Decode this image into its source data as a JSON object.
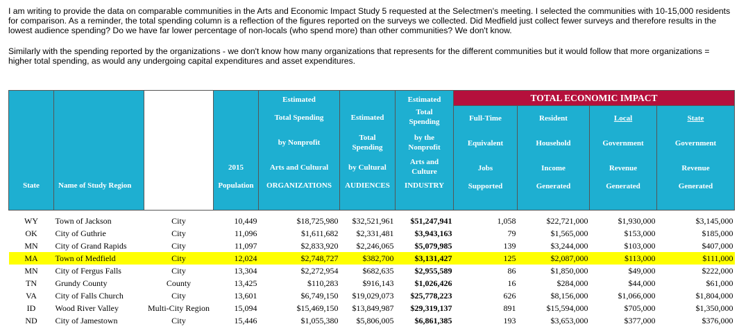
{
  "intro": {
    "paragraph1": "I am writing to provide the data on comparable communities in the Arts and Economic Impact Study 5 requested at the Selectmen's meeting. I selected the communities with 10-15,000 residents for comparison. As a reminder, the total spending column is a reflection of the figures reported on the surveys we collected. Did Medfield just collect fewer surveys and therefore results in the lowest audience spending? Do we have far lower percentage of non-locals (who spend more) than other communities? We don't know.",
    "paragraph2": "Similarly with the spending reported by the organizations - we don't know how many organizations that represents for the different communities but it would follow that more organizations = higher total spending, as would any undergoing capital expenditures and asset expenditures."
  },
  "table": {
    "impact_title": "TOTAL ECONOMIC IMPACT",
    "headers": {
      "state": "State",
      "region": "Name of Study Region",
      "population": [
        "2015",
        "Population"
      ],
      "org_spending": [
        "Estimated",
        "Total Spending",
        "by Nonprofit",
        "Arts and Cultural",
        "ORGANIZATIONS"
      ],
      "aud_spending": [
        "Estimated",
        "Total",
        "Spending",
        "by Cultural",
        "AUDIENCES"
      ],
      "industry": [
        "Estimated",
        "Total",
        "Spending",
        "by the",
        "Nonprofit",
        "Arts and",
        "Culture",
        "INDUSTRY"
      ],
      "fte": [
        "Full-Time",
        "Equivalent",
        "Jobs",
        "Supported"
      ],
      "income": [
        "Resident",
        "Household",
        "Income",
        "Generated"
      ],
      "local": [
        "Local",
        "Government",
        "Revenue",
        "Generated"
      ],
      "state_gov": [
        "State",
        "Government",
        "Revenue",
        "Generated"
      ]
    },
    "rows": [
      {
        "state": "WY",
        "region": "Town of Jackson",
        "type": "City",
        "population": "10,449",
        "org": "$18,725,980",
        "aud": "$32,521,961",
        "industry": "$51,247,941",
        "jobs": "1,058",
        "income": "$22,721,000",
        "local": "$1,930,000",
        "state_rev": "$3,145,000"
      },
      {
        "state": "OK",
        "region": "City of Guthrie",
        "type": "City",
        "population": "11,096",
        "org": "$1,611,682",
        "aud": "$2,331,481",
        "industry": "$3,943,163",
        "jobs": "79",
        "income": "$1,565,000",
        "local": "$153,000",
        "state_rev": "$185,000"
      },
      {
        "state": "MN",
        "region": "City of Grand Rapids",
        "type": "City",
        "population": "11,097",
        "org": "$2,833,920",
        "aud": "$2,246,065",
        "industry": "$5,079,985",
        "jobs": "139",
        "income": "$3,244,000",
        "local": "$103,000",
        "state_rev": "$407,000"
      },
      {
        "state": "MA",
        "region": "Town of Medfield",
        "type": "City",
        "population": "12,024",
        "org": "$2,748,727",
        "aud": "$382,700",
        "industry": "$3,131,427",
        "jobs": "125",
        "income": "$2,087,000",
        "local": "$113,000",
        "state_rev": "$111,000"
      },
      {
        "state": "MN",
        "region": "City of Fergus Falls",
        "type": "City",
        "population": "13,304",
        "org": "$2,272,954",
        "aud": "$682,635",
        "industry": "$2,955,589",
        "jobs": "86",
        "income": "$1,850,000",
        "local": "$49,000",
        "state_rev": "$222,000"
      },
      {
        "state": "TN",
        "region": "Grundy County",
        "type": "County",
        "population": "13,425",
        "org": "$110,283",
        "aud": "$916,143",
        "industry": "$1,026,426",
        "jobs": "16",
        "income": "$284,000",
        "local": "$44,000",
        "state_rev": "$61,000"
      },
      {
        "state": "VA",
        "region": "City of Falls Church",
        "type": "City",
        "population": "13,601",
        "org": "$6,749,150",
        "aud": "$19,029,073",
        "industry": "$25,778,223",
        "jobs": "626",
        "income": "$8,156,000",
        "local": "$1,066,000",
        "state_rev": "$1,804,000"
      },
      {
        "state": "ID",
        "region": "Wood River Valley",
        "type": "Multi-City Region",
        "population": "15,094",
        "org": "$15,469,150",
        "aud": "$13,849,987",
        "industry": "$29,319,137",
        "jobs": "891",
        "income": "$15,594,000",
        "local": "$705,000",
        "state_rev": "$1,350,000"
      },
      {
        "state": "ND",
        "region": "City of Jamestown",
        "type": "City",
        "population": "15,446",
        "org": "$1,055,380",
        "aud": "$5,806,005",
        "industry": "$6,861,385",
        "jobs": "193",
        "income": "$3,653,000",
        "local": "$377,000",
        "state_rev": "$376,000"
      }
    ],
    "highlight_color": "#ffff00",
    "header_color": "#1eafd1",
    "impact_color": "#b5103c"
  }
}
